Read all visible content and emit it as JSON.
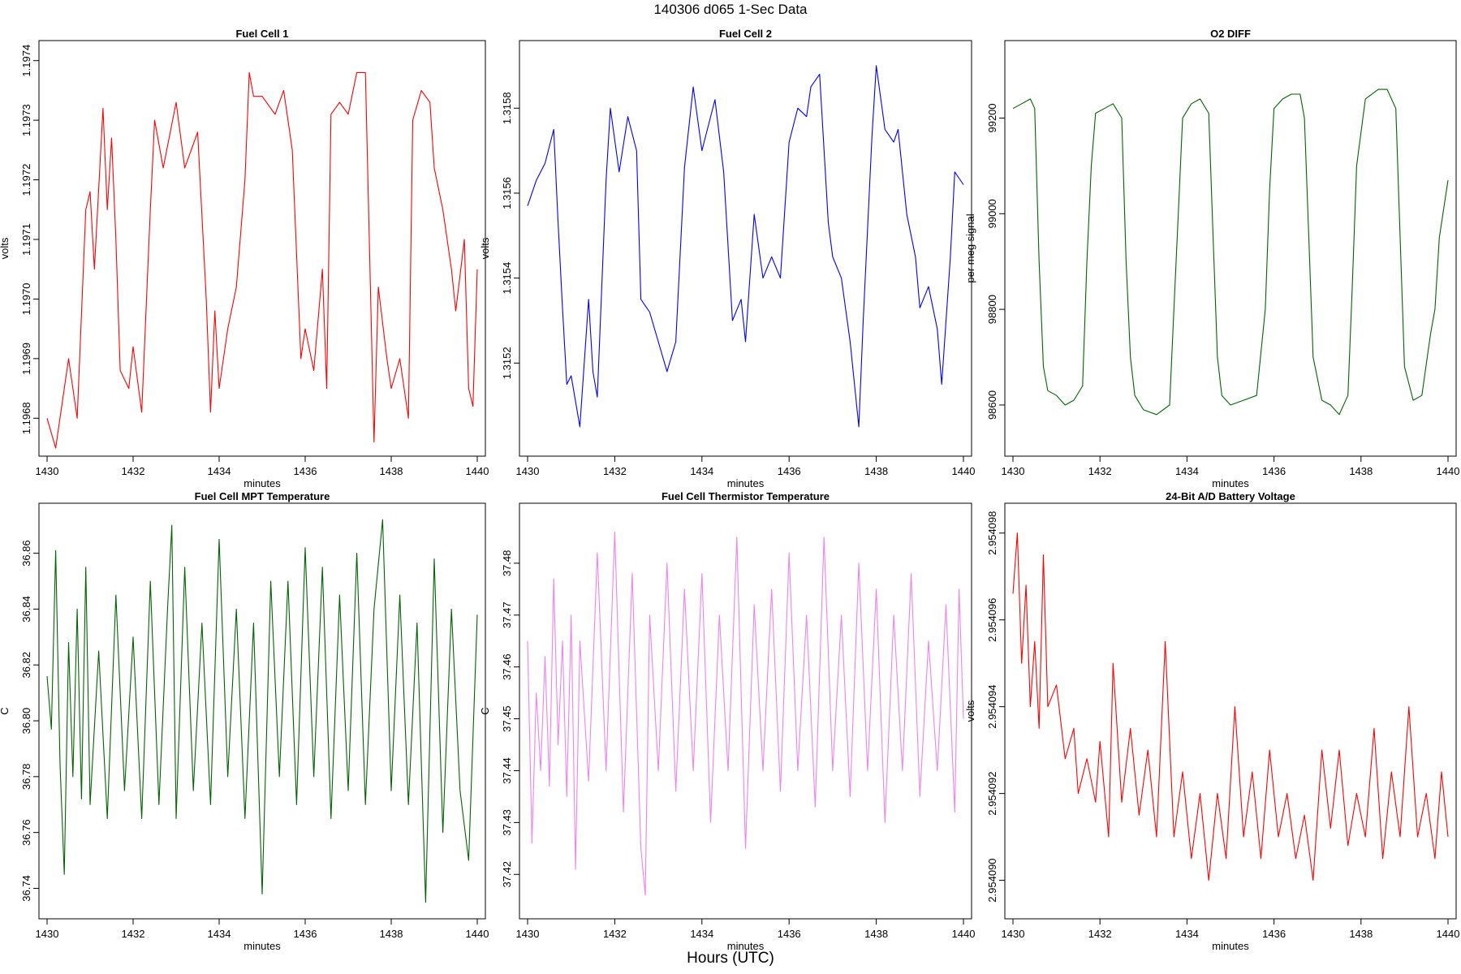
{
  "figure": {
    "title": "140306   d065   1-Sec Data",
    "outer_xlabel": "Hours (UTC)"
  },
  "chart_data": [
    {
      "type": "line",
      "title": "Fuel Cell 1",
      "xlabel": "minutes",
      "ylabel": "volts",
      "color": "#ff0000",
      "xlim": [
        1430,
        1440
      ],
      "ylim": [
        1.19675,
        1.19742
      ],
      "x_ticks": [
        1430,
        1432,
        1434,
        1436,
        1438,
        1440
      ],
      "x_tick_labels": [
        "1430",
        "1432",
        "1434",
        "1436",
        "1438",
        "1440"
      ],
      "y_ticks": [
        1.1968,
        1.1969,
        1.197,
        1.1971,
        1.1972,
        1.1973,
        1.1974
      ],
      "y_tick_labels": [
        "1.1968",
        "1.1969",
        "1.1970",
        "1.1971",
        "1.1972",
        "1.1973",
        "1.1974"
      ],
      "x": [
        1430.0,
        1430.2,
        1430.5,
        1430.6,
        1430.7,
        1430.9,
        1431.0,
        1431.1,
        1431.3,
        1431.4,
        1431.5,
        1431.6,
        1431.7,
        1431.9,
        1432.0,
        1432.2,
        1432.3,
        1432.4,
        1432.5,
        1432.7,
        1433.0,
        1433.2,
        1433.5,
        1433.7,
        1433.8,
        1433.9,
        1434.0,
        1434.2,
        1434.4,
        1434.6,
        1434.7,
        1434.8,
        1435.0,
        1435.3,
        1435.5,
        1435.7,
        1435.9,
        1436.0,
        1436.2,
        1436.4,
        1436.5,
        1436.6,
        1436.8,
        1437.0,
        1437.2,
        1437.4,
        1437.6,
        1437.7,
        1437.8,
        1437.9,
        1438.0,
        1438.2,
        1438.4,
        1438.5,
        1438.7,
        1438.9,
        1439.0,
        1439.2,
        1439.4,
        1439.5,
        1439.7,
        1439.8,
        1439.9,
        1440.0
      ],
      "y": [
        1.1968,
        1.19675,
        1.1969,
        1.19685,
        1.1968,
        1.19715,
        1.19718,
        1.19705,
        1.19732,
        1.19715,
        1.19727,
        1.1971,
        1.19688,
        1.19685,
        1.19692,
        1.19681,
        1.19698,
        1.19715,
        1.1973,
        1.19722,
        1.19733,
        1.19722,
        1.19728,
        1.197,
        1.19681,
        1.19698,
        1.19685,
        1.19695,
        1.19702,
        1.1972,
        1.19738,
        1.19734,
        1.19734,
        1.19731,
        1.19735,
        1.19725,
        1.1969,
        1.19695,
        1.19688,
        1.19705,
        1.19685,
        1.19731,
        1.19733,
        1.19731,
        1.19738,
        1.19738,
        1.19676,
        1.19702,
        1.19696,
        1.1969,
        1.19685,
        1.1969,
        1.1968,
        1.1973,
        1.19735,
        1.19733,
        1.19722,
        1.19715,
        1.19705,
        1.19698,
        1.1971,
        1.19685,
        1.19682,
        1.19705
      ]
    },
    {
      "type": "line",
      "title": "Fuel Cell 2",
      "xlabel": "minutes",
      "ylabel": "volts",
      "color": "#0000ff",
      "xlim": [
        1430,
        1440
      ],
      "ylim": [
        1.315,
        1.31594
      ],
      "x_ticks": [
        1430,
        1432,
        1434,
        1436,
        1438,
        1440
      ],
      "x_tick_labels": [
        "1430",
        "1432",
        "1434",
        "1436",
        "1438",
        "1440"
      ],
      "y_ticks": [
        1.3152,
        1.3154,
        1.3156,
        1.3158
      ],
      "y_tick_labels": [
        "1.3152",
        "1.3154",
        "1.3156",
        "1.3158"
      ],
      "x": [
        1430.0,
        1430.2,
        1430.4,
        1430.6,
        1430.7,
        1430.8,
        1430.9,
        1431.0,
        1431.2,
        1431.4,
        1431.5,
        1431.6,
        1431.8,
        1431.9,
        1432.1,
        1432.3,
        1432.5,
        1432.6,
        1432.8,
        1433.0,
        1433.2,
        1433.4,
        1433.6,
        1433.8,
        1434.0,
        1434.2,
        1434.3,
        1434.5,
        1434.7,
        1434.9,
        1435.0,
        1435.2,
        1435.4,
        1435.6,
        1435.8,
        1436.0,
        1436.2,
        1436.4,
        1436.5,
        1436.7,
        1436.9,
        1437.0,
        1437.2,
        1437.4,
        1437.6,
        1437.7,
        1437.9,
        1438.0,
        1438.2,
        1438.4,
        1438.5,
        1438.7,
        1438.9,
        1439.0,
        1439.2,
        1439.4,
        1439.5,
        1439.7,
        1439.8,
        1440.0
      ],
      "y": [
        1.31557,
        1.31563,
        1.31567,
        1.31575,
        1.31553,
        1.31533,
        1.31515,
        1.31517,
        1.31505,
        1.31535,
        1.31518,
        1.31512,
        1.31563,
        1.3158,
        1.31565,
        1.31578,
        1.3157,
        1.31535,
        1.31532,
        1.31525,
        1.31518,
        1.31525,
        1.31566,
        1.31585,
        1.3157,
        1.31578,
        1.31582,
        1.31565,
        1.3153,
        1.31535,
        1.31525,
        1.31555,
        1.3154,
        1.31545,
        1.3154,
        1.31572,
        1.3158,
        1.31578,
        1.31585,
        1.31588,
        1.31553,
        1.31545,
        1.3154,
        1.31525,
        1.31505,
        1.3153,
        1.31573,
        1.3159,
        1.31575,
        1.31572,
        1.31575,
        1.31555,
        1.31545,
        1.31533,
        1.31538,
        1.31528,
        1.31515,
        1.31545,
        1.31565,
        1.31562
      ]
    },
    {
      "type": "line",
      "title": "O2 DIFF",
      "xlabel": "minutes",
      "ylabel": "per meg signal",
      "color": "#006400",
      "xlim": [
        1430,
        1440
      ],
      "ylim": [
        98510,
        99345
      ],
      "x_ticks": [
        1430,
        1432,
        1434,
        1436,
        1438,
        1440
      ],
      "x_tick_labels": [
        "1430",
        "1432",
        "1434",
        "1436",
        "1438",
        "1440"
      ],
      "y_ticks": [
        98600,
        98800,
        99000,
        99200
      ],
      "y_tick_labels": [
        "98600",
        "98800",
        "99000",
        "99200"
      ],
      "x": [
        1430.0,
        1430.2,
        1430.4,
        1430.5,
        1430.6,
        1430.7,
        1430.8,
        1431.0,
        1431.2,
        1431.4,
        1431.6,
        1431.7,
        1431.8,
        1431.9,
        1432.1,
        1432.3,
        1432.5,
        1432.6,
        1432.7,
        1432.8,
        1433.0,
        1433.3,
        1433.6,
        1433.7,
        1433.8,
        1433.9,
        1434.1,
        1434.3,
        1434.5,
        1434.6,
        1434.7,
        1434.8,
        1435.0,
        1435.3,
        1435.6,
        1435.8,
        1435.9,
        1436.0,
        1436.2,
        1436.4,
        1436.6,
        1436.7,
        1436.8,
        1436.9,
        1437.1,
        1437.3,
        1437.5,
        1437.7,
        1437.8,
        1437.9,
        1438.1,
        1438.4,
        1438.6,
        1438.8,
        1438.9,
        1439.0,
        1439.2,
        1439.4,
        1439.6,
        1439.7,
        1439.8,
        1440.0
      ],
      "y": [
        99220,
        99230,
        99240,
        99220,
        98900,
        98680,
        98630,
        98620,
        98600,
        98610,
        98640,
        98900,
        99100,
        99210,
        99220,
        99230,
        99200,
        98900,
        98700,
        98620,
        98590,
        98580,
        98600,
        98800,
        99000,
        99200,
        99230,
        99240,
        99210,
        98950,
        98700,
        98620,
        98600,
        98610,
        98620,
        98800,
        99050,
        99220,
        99240,
        99250,
        99250,
        99200,
        98950,
        98700,
        98610,
        98600,
        98580,
        98620,
        98850,
        99100,
        99240,
        99260,
        99260,
        99220,
        98950,
        98680,
        98610,
        98620,
        98750,
        98800,
        98950,
        99070
      ]
    },
    {
      "type": "line",
      "title": "Fuel Cell MPT Temperature",
      "xlabel": "minutes",
      "ylabel": "C",
      "color": "#006400",
      "xlim": [
        1430,
        1440
      ],
      "ylim": [
        36.732,
        36.875
      ],
      "x_ticks": [
        1430,
        1432,
        1434,
        1436,
        1438,
        1440
      ],
      "x_tick_labels": [
        "1430",
        "1432",
        "1434",
        "1436",
        "1438",
        "1440"
      ],
      "y_ticks": [
        36.74,
        36.76,
        36.78,
        36.8,
        36.82,
        36.84,
        36.86
      ],
      "y_tick_labels": [
        "36.74",
        "36.76",
        "36.78",
        "36.80",
        "36.82",
        "36.84",
        "36.86"
      ],
      "x": [
        1430.0,
        1430.1,
        1430.2,
        1430.3,
        1430.4,
        1430.5,
        1430.6,
        1430.7,
        1430.8,
        1430.9,
        1431.0,
        1431.2,
        1431.4,
        1431.6,
        1431.8,
        1432.0,
        1432.2,
        1432.4,
        1432.6,
        1432.8,
        1432.9,
        1433.0,
        1433.2,
        1433.4,
        1433.6,
        1433.8,
        1434.0,
        1434.2,
        1434.4,
        1434.6,
        1434.8,
        1435.0,
        1435.2,
        1435.4,
        1435.6,
        1435.8,
        1436.0,
        1436.2,
        1436.4,
        1436.6,
        1436.8,
        1437.0,
        1437.2,
        1437.4,
        1437.6,
        1437.8,
        1438.0,
        1438.2,
        1438.4,
        1438.6,
        1438.8,
        1439.0,
        1439.2,
        1439.4,
        1439.6,
        1439.8,
        1440.0
      ],
      "y": [
        36.816,
        36.797,
        36.861,
        36.785,
        36.745,
        36.828,
        36.78,
        36.84,
        36.772,
        36.855,
        36.77,
        36.825,
        36.765,
        36.845,
        36.775,
        36.83,
        36.765,
        36.85,
        36.77,
        36.84,
        36.87,
        36.765,
        36.855,
        36.775,
        36.835,
        36.77,
        36.865,
        36.78,
        36.84,
        36.765,
        36.835,
        36.738,
        36.85,
        36.78,
        36.85,
        36.77,
        36.862,
        36.78,
        36.855,
        36.765,
        36.845,
        36.775,
        36.86,
        36.77,
        36.84,
        36.872,
        36.775,
        36.845,
        36.77,
        36.835,
        36.735,
        36.858,
        36.76,
        36.84,
        36.775,
        36.75,
        36.838
      ]
    },
    {
      "type": "line",
      "title": "Fuel Cell Thermistor Temperature",
      "xlabel": "minutes",
      "ylabel": "C",
      "color": "#ee82ee",
      "xlim": [
        1430,
        1440
      ],
      "ylim": [
        37.413,
        37.49
      ],
      "x_ticks": [
        1430,
        1432,
        1434,
        1436,
        1438,
        1440
      ],
      "x_tick_labels": [
        "1430",
        "1432",
        "1434",
        "1436",
        "1438",
        "1440"
      ],
      "y_ticks": [
        37.42,
        37.43,
        37.44,
        37.45,
        37.46,
        37.47,
        37.48
      ],
      "y_tick_labels": [
        "37.42",
        "37.43",
        "37.44",
        "37.45",
        "37.46",
        "37.47",
        "37.48"
      ],
      "x": [
        1430.0,
        1430.1,
        1430.2,
        1430.3,
        1430.4,
        1430.5,
        1430.6,
        1430.7,
        1430.8,
        1430.9,
        1431.0,
        1431.1,
        1431.2,
        1431.4,
        1431.6,
        1431.8,
        1432.0,
        1432.2,
        1432.4,
        1432.6,
        1432.7,
        1432.8,
        1433.0,
        1433.2,
        1433.4,
        1433.6,
        1433.8,
        1434.0,
        1434.2,
        1434.4,
        1434.6,
        1434.8,
        1435.0,
        1435.2,
        1435.4,
        1435.6,
        1435.8,
        1436.0,
        1436.2,
        1436.4,
        1436.6,
        1436.8,
        1437.0,
        1437.2,
        1437.4,
        1437.6,
        1437.8,
        1438.0,
        1438.2,
        1438.4,
        1438.6,
        1438.8,
        1439.0,
        1439.2,
        1439.4,
        1439.6,
        1439.8,
        1439.9,
        1440.0
      ],
      "y": [
        37.465,
        37.426,
        37.455,
        37.44,
        37.462,
        37.437,
        37.477,
        37.445,
        37.465,
        37.435,
        37.47,
        37.421,
        37.465,
        37.438,
        37.482,
        37.44,
        37.486,
        37.432,
        37.478,
        37.425,
        37.416,
        37.47,
        37.44,
        37.48,
        37.436,
        37.475,
        37.44,
        37.478,
        37.43,
        37.47,
        37.44,
        37.485,
        37.425,
        37.472,
        37.44,
        37.475,
        37.436,
        37.482,
        37.44,
        37.47,
        37.433,
        37.485,
        37.44,
        37.47,
        37.435,
        37.48,
        37.44,
        37.475,
        37.43,
        37.47,
        37.44,
        37.478,
        37.435,
        37.465,
        37.44,
        37.472,
        37.432,
        37.475,
        37.45
      ]
    },
    {
      "type": "line",
      "title": "24-Bit A/D Battery Voltage",
      "xlabel": "minutes",
      "ylabel": "volts",
      "color": "#ff0000",
      "xlim": [
        1430,
        1440
      ],
      "ylim": [
        2.9540893,
        2.9540985
      ],
      "x_ticks": [
        1430,
        1432,
        1434,
        1436,
        1438,
        1440
      ],
      "x_tick_labels": [
        "1430",
        "1432",
        "1434",
        "1436",
        "1438",
        "1440"
      ],
      "y_ticks": [
        2.95409,
        2.954092,
        2.954094,
        2.954096,
        2.954098
      ],
      "y_tick_labels": [
        "2.954090",
        "2.954092",
        "2.954094",
        "2.954096",
        "2.954098"
      ],
      "x": [
        1430.0,
        1430.1,
        1430.2,
        1430.3,
        1430.4,
        1430.5,
        1430.6,
        1430.7,
        1430.8,
        1431.0,
        1431.2,
        1431.4,
        1431.5,
        1431.7,
        1431.9,
        1432.0,
        1432.2,
        1432.3,
        1432.5,
        1432.7,
        1432.9,
        1433.1,
        1433.3,
        1433.5,
        1433.7,
        1433.9,
        1434.1,
        1434.3,
        1434.5,
        1434.7,
        1434.9,
        1435.1,
        1435.3,
        1435.5,
        1435.7,
        1435.9,
        1436.1,
        1436.3,
        1436.5,
        1436.7,
        1436.9,
        1437.1,
        1437.3,
        1437.5,
        1437.7,
        1437.9,
        1438.1,
        1438.3,
        1438.5,
        1438.7,
        1438.9,
        1439.1,
        1439.3,
        1439.5,
        1439.7,
        1439.85,
        1440.0
      ],
      "y": [
        2.9540966,
        2.954098,
        2.954095,
        2.9540968,
        2.954094,
        2.9540955,
        2.9540935,
        2.9540975,
        2.954094,
        2.9540945,
        2.9540928,
        2.9540935,
        2.954092,
        2.9540928,
        2.9540918,
        2.9540932,
        2.954091,
        2.954095,
        2.9540918,
        2.9540935,
        2.9540915,
        2.954093,
        2.954091,
        2.9540955,
        2.954091,
        2.9540925,
        2.9540905,
        2.954092,
        2.95409,
        2.954092,
        2.9540905,
        2.954094,
        2.954091,
        2.9540925,
        2.9540905,
        2.954093,
        2.954091,
        2.954092,
        2.9540905,
        2.9540915,
        2.95409,
        2.954093,
        2.9540912,
        2.954093,
        2.9540908,
        2.954092,
        2.954091,
        2.9540935,
        2.9540905,
        2.9540925,
        2.954091,
        2.954094,
        2.954091,
        2.954092,
        2.9540905,
        2.9540925,
        2.954091
      ]
    }
  ]
}
